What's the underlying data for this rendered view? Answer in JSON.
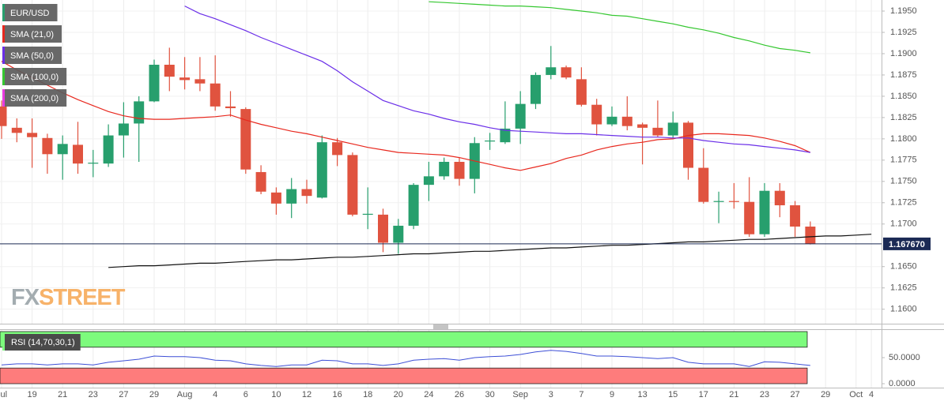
{
  "chart_data": [
    {
      "type": "candlestick",
      "name": "EUR/USD",
      "up_color": "#279f6d",
      "down_color": "#e0533f",
      "categories": [
        "Jul",
        null,
        "19",
        null,
        "21",
        null,
        "23",
        null,
        "27",
        null,
        "29",
        null,
        "Aug",
        null,
        "4",
        null,
        "6",
        null,
        "10",
        null,
        "12",
        null,
        "16",
        null,
        "18",
        null,
        "20",
        null,
        "24",
        null,
        "26",
        null,
        "30",
        null,
        "Sep",
        null,
        "3",
        null,
        "7",
        null,
        "9",
        null,
        "13",
        null,
        "15",
        null,
        "17",
        null,
        "21",
        null,
        "23",
        null,
        "27",
        null,
        "29",
        null,
        "Oct",
        "4"
      ],
      "open": [
        1.1838,
        1.1813,
        1.1807,
        1.1801,
        1.1782,
        1.1793,
        1.1771,
        1.1771,
        1.1804,
        1.1818,
        1.1844,
        1.1887,
        1.1872,
        1.187,
        1.1865,
        1.1838,
        1.1835,
        1.1761,
        1.1737,
        1.1724,
        1.1741,
        1.1731,
        1.1796,
        1.1781,
        1.1712,
        1.1711,
        1.1678,
        1.1698,
        1.1746,
        1.1756,
        1.1773,
        1.1753,
        1.1798,
        1.1796,
        1.1812,
        1.1841,
        1.1875,
        1.1884,
        1.187,
        1.184,
        1.1817,
        1.1826,
        1.1817,
        1.1813,
        1.1804,
        1.1819,
        1.1766,
        1.1727,
        1.1727,
        1.1726,
        1.1688,
        1.1739,
        1.1722,
        1.1697,
        null,
        null,
        null,
        null
      ],
      "high": [
        1.1845,
        1.1824,
        1.1824,
        1.1806,
        1.1804,
        1.182,
        1.1787,
        1.1817,
        1.1843,
        1.185,
        1.1893,
        1.1907,
        1.1896,
        1.1896,
        1.1898,
        1.1856,
        1.1837,
        1.1769,
        1.1743,
        1.1754,
        1.1752,
        1.1804,
        1.1801,
        1.1784,
        1.1743,
        1.1718,
        1.1706,
        1.1748,
        1.1773,
        1.1778,
        1.1778,
        1.1802,
        1.1807,
        1.1844,
        1.1856,
        1.1878,
        1.1909,
        1.1886,
        1.1884,
        1.1847,
        1.1838,
        1.185,
        1.1819,
        1.1845,
        1.1832,
        1.1821,
        1.1789,
        1.1738,
        1.1748,
        1.1755,
        1.1748,
        1.1748,
        1.1727,
        1.1703,
        null,
        null,
        null,
        null
      ],
      "low": [
        1.18,
        1.1796,
        1.1766,
        1.1759,
        1.1752,
        1.1759,
        1.1755,
        1.1767,
        1.1778,
        1.1773,
        1.1843,
        1.1856,
        1.1858,
        1.1856,
        1.1833,
        1.1826,
        1.1759,
        1.1735,
        1.1711,
        1.1707,
        1.1724,
        1.173,
        1.1768,
        1.1709,
        1.1694,
        1.1667,
        1.1665,
        1.1694,
        1.1727,
        1.1752,
        1.1745,
        1.1736,
        1.1787,
        1.1794,
        1.1794,
        1.1835,
        1.187,
        1.187,
        1.1838,
        1.1804,
        1.1815,
        1.181,
        1.177,
        1.1802,
        1.1801,
        1.1752,
        1.1724,
        1.1701,
        1.1718,
        1.1685,
        1.1685,
        1.1708,
        1.1685,
        1.1676,
        null,
        null,
        null,
        null
      ],
      "close": [
        1.1815,
        1.1807,
        1.1802,
        1.1782,
        1.1794,
        1.1771,
        1.1772,
        1.1804,
        1.1818,
        1.1844,
        1.1887,
        1.1873,
        1.1869,
        1.1865,
        1.1838,
        1.1836,
        1.1764,
        1.1738,
        1.1724,
        1.1741,
        1.1733,
        1.1796,
        1.1781,
        1.1711,
        1.1712,
        1.1678,
        1.1698,
        1.1746,
        1.1756,
        1.1773,
        1.1753,
        1.1795,
        1.1798,
        1.1812,
        1.1841,
        1.1875,
        1.1884,
        1.1872,
        1.184,
        1.1817,
        1.1826,
        1.1815,
        1.1813,
        1.1804,
        1.1819,
        1.1766,
        1.1726,
        1.1727,
        1.1726,
        1.1688,
        1.1739,
        1.1722,
        1.1697,
        1.16767,
        null,
        null,
        null,
        null
      ],
      "series": [
        {
          "name": "SMA (21,0)",
          "color": "#e8281e",
          "values": [
            1.1891,
            1.1881,
            1.1872,
            1.1863,
            1.1854,
            1.1846,
            1.1839,
            1.1832,
            1.1827,
            1.1824,
            1.1823,
            1.1823,
            1.1824,
            1.1825,
            1.1826,
            1.1828,
            1.1822,
            1.1817,
            1.1813,
            1.1809,
            1.1806,
            1.1802,
            1.1798,
            1.1794,
            1.179,
            1.1787,
            1.1784,
            1.1783,
            1.1782,
            1.1781,
            1.1778,
            1.1774,
            1.177,
            1.1766,
            1.1763,
            1.1767,
            1.1771,
            1.1777,
            1.1781,
            1.1787,
            1.1791,
            1.1794,
            1.1796,
            1.1799,
            1.18,
            1.1804,
            1.1806,
            1.1806,
            1.1805,
            1.1804,
            1.1801,
            1.1797,
            1.1792,
            1.1784,
            null,
            null,
            null,
            null
          ]
        },
        {
          "name": "SMA (50,0)",
          "color": "#6a2ee8",
          "values": [
            null,
            null,
            null,
            null,
            null,
            null,
            null,
            null,
            null,
            null,
            null,
            null,
            1.1956,
            1.1947,
            1.1941,
            1.1934,
            1.1927,
            1.1919,
            1.1912,
            1.1905,
            1.1898,
            1.1891,
            1.188,
            1.1867,
            1.1856,
            1.1845,
            1.1839,
            1.1833,
            1.1829,
            1.1824,
            1.182,
            1.1817,
            1.1813,
            1.181,
            1.1809,
            1.1808,
            1.1807,
            1.1806,
            1.1806,
            1.1805,
            1.1804,
            1.1803,
            1.1802,
            1.1802,
            1.1801,
            1.1801,
            1.1798,
            1.1796,
            1.1794,
            1.1793,
            1.1791,
            1.1789,
            1.1787,
            1.1784,
            null,
            null,
            null,
            null
          ]
        },
        {
          "name": "SMA (100,0)",
          "color": "#35c730",
          "values": [
            null,
            null,
            null,
            null,
            null,
            null,
            null,
            null,
            null,
            null,
            null,
            null,
            null,
            null,
            null,
            null,
            null,
            null,
            null,
            null,
            null,
            null,
            null,
            null,
            null,
            null,
            null,
            null,
            1.1961,
            1.196,
            1.1959,
            1.1958,
            1.1957,
            1.1956,
            1.1956,
            1.1955,
            1.1954,
            1.1952,
            1.195,
            1.1948,
            1.1945,
            1.1944,
            1.1941,
            1.1938,
            1.1935,
            1.1931,
            1.1928,
            1.1924,
            1.1919,
            1.1915,
            1.191,
            1.1906,
            1.1904,
            1.1901,
            null,
            null,
            null,
            null
          ]
        },
        {
          "name": "SMA (200,0)",
          "color": "#e83be0",
          "values": [
            null,
            null,
            null,
            null,
            null,
            null,
            null,
            null,
            null,
            null,
            null,
            null,
            null,
            null,
            null,
            null,
            null,
            null,
            null,
            null,
            null,
            null,
            null,
            null,
            null,
            null,
            null,
            null,
            null,
            null,
            null,
            null,
            null,
            null,
            null,
            null,
            null,
            null,
            null,
            null,
            null,
            null,
            null,
            null,
            null,
            null,
            null,
            null,
            null,
            null,
            null,
            null,
            null,
            null,
            null,
            null,
            null,
            null
          ]
        }
      ],
      "trendline": {
        "color": "#111111",
        "values": [
          null,
          null,
          null,
          null,
          null,
          null,
          null,
          1.1649,
          1.165,
          1.1651,
          1.1651,
          1.1652,
          1.1653,
          1.1654,
          1.1654,
          1.1655,
          1.1656,
          1.1657,
          1.1658,
          1.1658,
          1.1659,
          1.166,
          1.1661,
          1.1661,
          1.1662,
          1.1663,
          1.1664,
          1.1665,
          1.1665,
          1.1666,
          1.1667,
          1.1668,
          1.1668,
          1.1669,
          1.167,
          1.1671,
          1.1672,
          1.1672,
          1.1673,
          1.1674,
          1.1675,
          1.1675,
          1.1676,
          1.1677,
          1.1678,
          1.1679,
          1.1679,
          1.168,
          1.1681,
          1.1682,
          1.1682,
          1.1683,
          1.1684,
          1.1685,
          1.1686,
          1.1686,
          1.1687,
          1.1688
        ]
      },
      "last_price": {
        "value": 1.16767,
        "label": "1.167670",
        "color": "#1b2a55"
      },
      "ylim": [
        1.1583,
        1.1963
      ],
      "yticks": [
        {
          "value": 1.195,
          "label": "1.1950"
        },
        {
          "value": 1.1925,
          "label": "1.1925"
        },
        {
          "value": 1.19,
          "label": "1.1900"
        },
        {
          "value": 1.1875,
          "label": "1.1875"
        },
        {
          "value": 1.185,
          "label": "1.1850"
        },
        {
          "value": 1.1825,
          "label": "1.1825"
        },
        {
          "value": 1.18,
          "label": "1.1800"
        },
        {
          "value": 1.1775,
          "label": "1.1775"
        },
        {
          "value": 1.175,
          "label": "1.1750"
        },
        {
          "value": 1.1725,
          "label": "1.1725"
        },
        {
          "value": 1.17,
          "label": "1.1700"
        },
        {
          "value": 1.165,
          "label": "1.1650"
        },
        {
          "value": 1.1625,
          "label": "1.1625"
        },
        {
          "value": 1.16,
          "label": "1.1600"
        }
      ],
      "grid": true,
      "watermark": [
        "FX",
        "STREET"
      ]
    },
    {
      "type": "line",
      "name": "RSI (14,70,30,1)",
      "color": "#3d4fd6",
      "values": [
        36,
        38,
        38,
        36,
        38,
        38,
        36,
        41,
        44,
        47,
        53,
        52,
        52,
        50,
        45,
        44,
        38,
        35,
        33,
        36,
        36,
        45,
        44,
        38,
        38,
        35,
        38,
        45,
        47,
        48,
        45,
        50,
        52,
        53,
        56,
        61,
        64,
        62,
        58,
        53,
        53,
        52,
        50,
        48,
        50,
        41,
        38,
        38,
        38,
        33,
        42,
        41,
        38,
        35,
        null,
        null,
        null,
        null
      ],
      "ylim": [
        0,
        100
      ],
      "yticks": [
        {
          "value": 50,
          "label": "50.0000"
        },
        {
          "value": 0,
          "label": "0.0000"
        }
      ],
      "bands": [
        {
          "range": [
            70,
            100
          ],
          "color": "#7dfb7d"
        },
        {
          "range": [
            0,
            30
          ],
          "color": "#fe7c7c"
        }
      ]
    }
  ]
}
